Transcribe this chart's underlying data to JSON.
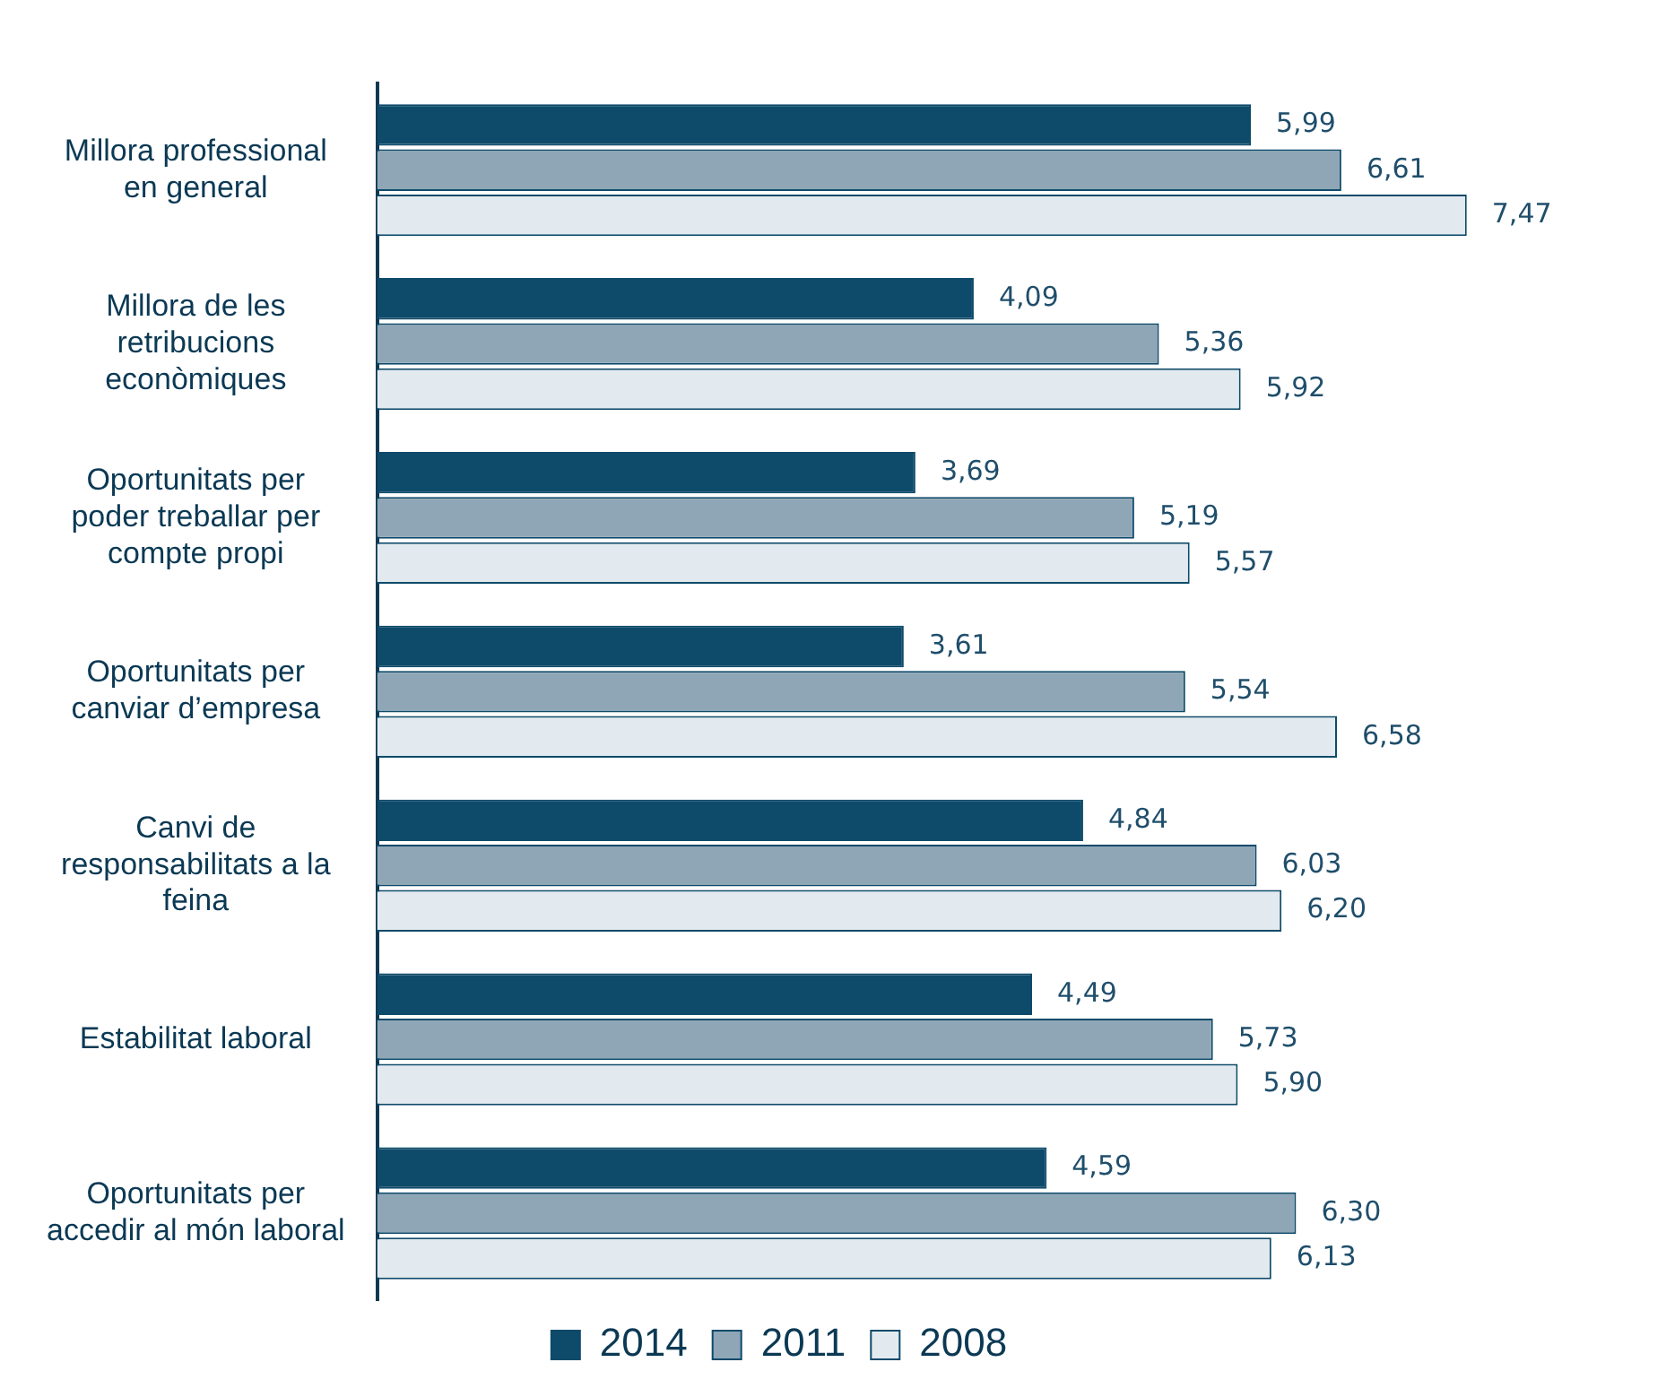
{
  "chart_data": {
    "type": "bar",
    "orientation": "horizontal",
    "categories": [
      "Millora professional\nen general",
      "Millora de les\nretribucions\neconòmiques",
      "Oportunitats per\npoder treballar per\ncompte propi",
      "Oportunitats per\ncanviar d’empresa",
      "Canvi de\nresponsabilitats a la\nfeina",
      "Estabilitat laboral",
      "Oportunitats per\naccedir al món laboral"
    ],
    "series": [
      {
        "name": "2014",
        "color": "#0e4a6a",
        "values": [
          5.99,
          4.09,
          3.69,
          3.61,
          4.84,
          4.49,
          4.59
        ],
        "value_labels": [
          "5,99",
          "4,09",
          "3,69",
          "3,61",
          "4,84",
          "4,49",
          "4,59"
        ]
      },
      {
        "name": "2011",
        "color": "#8fa6b6",
        "values": [
          6.61,
          5.36,
          5.19,
          5.54,
          6.03,
          5.73,
          6.3
        ],
        "value_labels": [
          "6,61",
          "5,36",
          "5,19",
          "5,54",
          "6,03",
          "5,73",
          "6,30"
        ]
      },
      {
        "name": "2008",
        "color": "#e3eaef",
        "values": [
          7.47,
          5.92,
          5.57,
          6.58,
          6.2,
          5.9,
          6.13
        ],
        "value_labels": [
          "7,47",
          "5,92",
          "5,57",
          "6,58",
          "6,20",
          "5,90",
          "6,13"
        ]
      }
    ],
    "legend": "bottom",
    "grid": false,
    "tick_labels": "y"
  }
}
